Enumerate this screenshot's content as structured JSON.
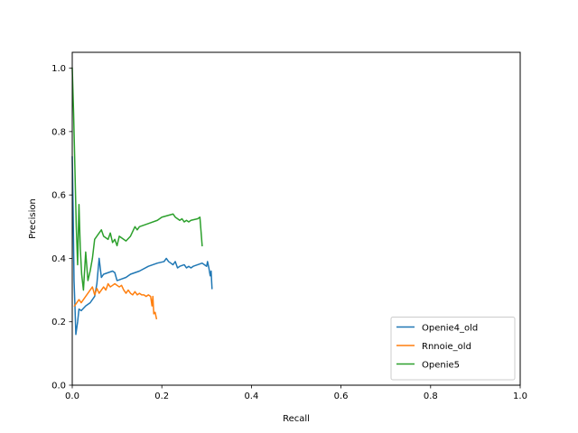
{
  "chart_data": {
    "type": "line",
    "title": "",
    "xlabel": "Recall",
    "ylabel": "Precision",
    "xlim": [
      0,
      1
    ],
    "ylim": [
      0,
      1.05
    ],
    "xticks": [
      0.0,
      0.2,
      0.4,
      0.6,
      0.8,
      1.0
    ],
    "yticks": [
      0.0,
      0.2,
      0.4,
      0.6,
      0.8,
      1.0
    ],
    "tick_labels_x": [
      "0.0",
      "0.2",
      "0.4",
      "0.6",
      "0.8",
      "1.0"
    ],
    "tick_labels_y": [
      "0.0",
      "0.2",
      "0.4",
      "0.6",
      "0.8",
      "1.0"
    ],
    "grid": false,
    "legend_position": "lower-right",
    "series": [
      {
        "name": "Openie4_old",
        "color": "#1f77b4",
        "points": [
          [
            0.0,
            0.72
          ],
          [
            0.002,
            0.55
          ],
          [
            0.004,
            0.33
          ],
          [
            0.006,
            0.25
          ],
          [
            0.008,
            0.16
          ],
          [
            0.012,
            0.2
          ],
          [
            0.015,
            0.24
          ],
          [
            0.02,
            0.235
          ],
          [
            0.03,
            0.25
          ],
          [
            0.04,
            0.26
          ],
          [
            0.05,
            0.28
          ],
          [
            0.055,
            0.32
          ],
          [
            0.06,
            0.4
          ],
          [
            0.065,
            0.34
          ],
          [
            0.07,
            0.35
          ],
          [
            0.08,
            0.355
          ],
          [
            0.09,
            0.36
          ],
          [
            0.095,
            0.355
          ],
          [
            0.1,
            0.33
          ],
          [
            0.11,
            0.335
          ],
          [
            0.12,
            0.34
          ],
          [
            0.13,
            0.35
          ],
          [
            0.14,
            0.355
          ],
          [
            0.15,
            0.36
          ],
          [
            0.17,
            0.375
          ],
          [
            0.19,
            0.385
          ],
          [
            0.205,
            0.39
          ],
          [
            0.21,
            0.4
          ],
          [
            0.215,
            0.39
          ],
          [
            0.22,
            0.385
          ],
          [
            0.225,
            0.38
          ],
          [
            0.23,
            0.39
          ],
          [
            0.235,
            0.37
          ],
          [
            0.24,
            0.375
          ],
          [
            0.25,
            0.38
          ],
          [
            0.255,
            0.37
          ],
          [
            0.26,
            0.375
          ],
          [
            0.265,
            0.37
          ],
          [
            0.27,
            0.375
          ],
          [
            0.28,
            0.38
          ],
          [
            0.29,
            0.385
          ],
          [
            0.3,
            0.375
          ],
          [
            0.302,
            0.39
          ],
          [
            0.305,
            0.37
          ],
          [
            0.308,
            0.345
          ],
          [
            0.31,
            0.36
          ],
          [
            0.312,
            0.305
          ]
        ]
      },
      {
        "name": "Rnnoie_old",
        "color": "#ff7f0e",
        "points": [
          [
            0.005,
            0.25
          ],
          [
            0.01,
            0.26
          ],
          [
            0.015,
            0.27
          ],
          [
            0.02,
            0.26
          ],
          [
            0.025,
            0.27
          ],
          [
            0.03,
            0.28
          ],
          [
            0.035,
            0.29
          ],
          [
            0.04,
            0.3
          ],
          [
            0.045,
            0.31
          ],
          [
            0.05,
            0.285
          ],
          [
            0.055,
            0.305
          ],
          [
            0.06,
            0.29
          ],
          [
            0.065,
            0.3
          ],
          [
            0.07,
            0.31
          ],
          [
            0.075,
            0.3
          ],
          [
            0.08,
            0.32
          ],
          [
            0.085,
            0.31
          ],
          [
            0.09,
            0.315
          ],
          [
            0.095,
            0.32
          ],
          [
            0.1,
            0.315
          ],
          [
            0.105,
            0.31
          ],
          [
            0.11,
            0.315
          ],
          [
            0.115,
            0.3
          ],
          [
            0.12,
            0.29
          ],
          [
            0.125,
            0.3
          ],
          [
            0.13,
            0.29
          ],
          [
            0.135,
            0.285
          ],
          [
            0.14,
            0.295
          ],
          [
            0.145,
            0.285
          ],
          [
            0.15,
            0.29
          ],
          [
            0.155,
            0.285
          ],
          [
            0.16,
            0.285
          ],
          [
            0.165,
            0.28
          ],
          [
            0.17,
            0.285
          ],
          [
            0.175,
            0.28
          ],
          [
            0.178,
            0.25
          ],
          [
            0.18,
            0.28
          ],
          [
            0.182,
            0.225
          ],
          [
            0.185,
            0.23
          ],
          [
            0.188,
            0.21
          ]
        ]
      },
      {
        "name": "Openie5",
        "color": "#2ca02c",
        "points": [
          [
            0.0,
            1.0
          ],
          [
            0.003,
            0.86
          ],
          [
            0.006,
            0.68
          ],
          [
            0.009,
            0.5
          ],
          [
            0.012,
            0.38
          ],
          [
            0.015,
            0.57
          ],
          [
            0.018,
            0.43
          ],
          [
            0.021,
            0.35
          ],
          [
            0.025,
            0.3
          ],
          [
            0.03,
            0.42
          ],
          [
            0.035,
            0.33
          ],
          [
            0.04,
            0.36
          ],
          [
            0.045,
            0.4
          ],
          [
            0.05,
            0.46
          ],
          [
            0.06,
            0.48
          ],
          [
            0.065,
            0.49
          ],
          [
            0.07,
            0.47
          ],
          [
            0.08,
            0.46
          ],
          [
            0.085,
            0.48
          ],
          [
            0.09,
            0.45
          ],
          [
            0.095,
            0.46
          ],
          [
            0.1,
            0.44
          ],
          [
            0.105,
            0.47
          ],
          [
            0.12,
            0.455
          ],
          [
            0.13,
            0.47
          ],
          [
            0.14,
            0.5
          ],
          [
            0.145,
            0.49
          ],
          [
            0.15,
            0.5
          ],
          [
            0.17,
            0.51
          ],
          [
            0.19,
            0.52
          ],
          [
            0.2,
            0.53
          ],
          [
            0.225,
            0.54
          ],
          [
            0.23,
            0.53
          ],
          [
            0.24,
            0.52
          ],
          [
            0.245,
            0.525
          ],
          [
            0.25,
            0.515
          ],
          [
            0.255,
            0.52
          ],
          [
            0.26,
            0.515
          ],
          [
            0.265,
            0.52
          ],
          [
            0.28,
            0.525
          ],
          [
            0.285,
            0.53
          ],
          [
            0.29,
            0.44
          ]
        ]
      }
    ]
  }
}
